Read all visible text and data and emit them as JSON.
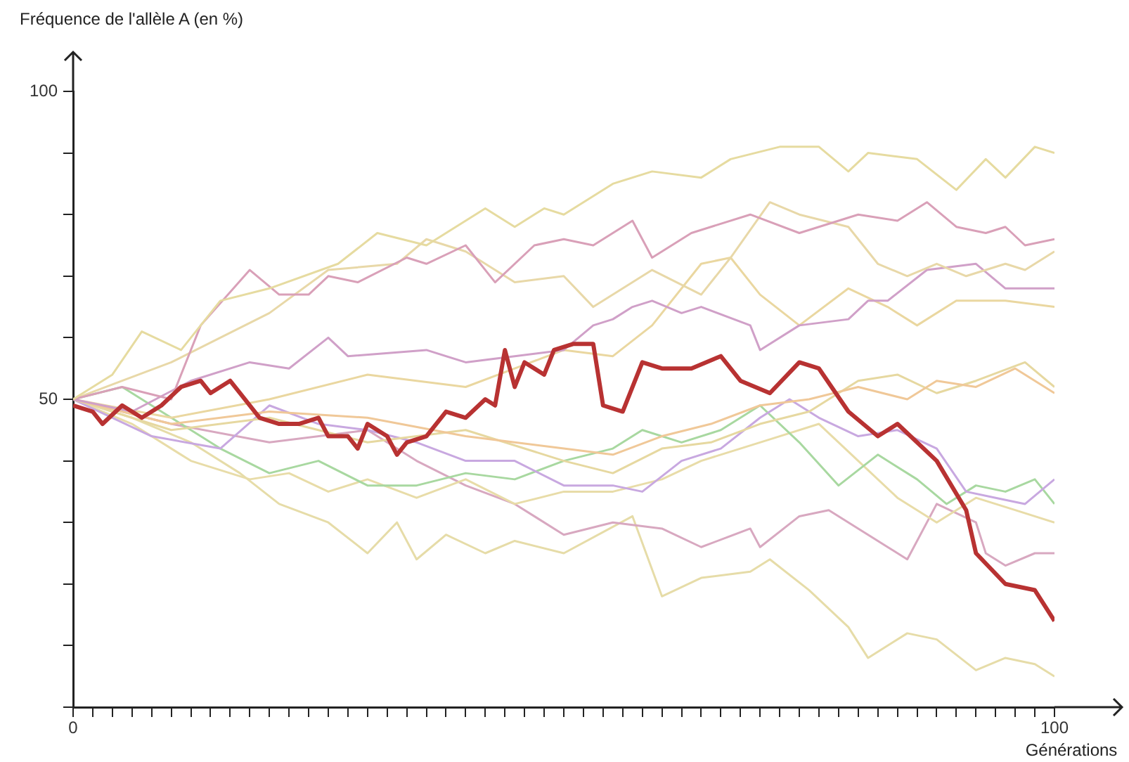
{
  "chart_data": {
    "type": "line",
    "ylabel": "Fréquence de l'allèle A (en %)",
    "xlabel": "Générations",
    "xlim": [
      0,
      100
    ],
    "ylim": [
      0,
      100
    ],
    "xticks": [
      0,
      {
        "value": 2,
        "label": null
      },
      {
        "value": 4,
        "label": null
      },
      {
        "value": 6,
        "label": null
      },
      {
        "value": 8,
        "label": null
      },
      {
        "value": 10,
        "label": null
      },
      {
        "value": 12,
        "label": null
      },
      {
        "value": 14,
        "label": null
      },
      {
        "value": 16,
        "label": null
      },
      {
        "value": 18,
        "label": null
      },
      {
        "value": 20,
        "label": null
      },
      {
        "value": 22,
        "label": null
      },
      {
        "value": 24,
        "label": null
      },
      {
        "value": 26,
        "label": null
      },
      {
        "value": 28,
        "label": null
      },
      {
        "value": 30,
        "label": null
      },
      {
        "value": 32,
        "label": null
      },
      {
        "value": 34,
        "label": null
      },
      {
        "value": 36,
        "label": null
      },
      {
        "value": 38,
        "label": null
      },
      {
        "value": 40,
        "label": null
      },
      {
        "value": 42,
        "label": null
      },
      {
        "value": 44,
        "label": null
      },
      {
        "value": 46,
        "label": null
      },
      {
        "value": 48,
        "label": null
      },
      {
        "value": 50,
        "label": null
      },
      {
        "value": 52,
        "label": null
      },
      {
        "value": 54,
        "label": null
      },
      {
        "value": 56,
        "label": null
      },
      {
        "value": 58,
        "label": null
      },
      {
        "value": 60,
        "label": null
      },
      {
        "value": 62,
        "label": null
      },
      {
        "value": 64,
        "label": null
      },
      {
        "value": 66,
        "label": null
      },
      {
        "value": 68,
        "label": null
      },
      {
        "value": 70,
        "label": null
      },
      {
        "value": 72,
        "label": null
      },
      {
        "value": 74,
        "label": null
      },
      {
        "value": 76,
        "label": null
      },
      {
        "value": 78,
        "label": null
      },
      {
        "value": 80,
        "label": null
      },
      {
        "value": 82,
        "label": null
      },
      {
        "value": 84,
        "label": null
      },
      {
        "value": 86,
        "label": null
      },
      {
        "value": 88,
        "label": null
      },
      {
        "value": 90,
        "label": null
      },
      {
        "value": 92,
        "label": null
      },
      {
        "value": 94,
        "label": null
      },
      {
        "value": 96,
        "label": null
      },
      {
        "value": 98,
        "label": null
      },
      100
    ],
    "yticks": [
      {
        "value": 0,
        "label": null
      },
      {
        "value": 10,
        "label": null
      },
      {
        "value": 20,
        "label": null
      },
      {
        "value": 30,
        "label": null
      },
      {
        "value": 40,
        "label": null
      },
      50,
      {
        "value": 60,
        "label": null
      },
      {
        "value": 70,
        "label": null
      },
      {
        "value": 80,
        "label": null
      },
      {
        "value": 90,
        "label": null
      },
      100
    ],
    "grid": false,
    "legend": false,
    "marker": "none",
    "series": [
      {
        "color": "#b83232",
        "x": [
          0,
          2,
          3,
          5,
          7,
          9,
          11,
          13,
          14,
          16,
          17,
          19,
          21,
          23,
          25,
          26,
          28,
          29,
          30,
          32,
          33,
          34,
          36,
          38,
          40,
          42,
          43,
          44,
          45,
          46,
          48,
          49,
          51,
          53,
          54,
          56,
          58,
          60,
          63,
          66,
          68,
          71,
          74,
          76,
          79,
          82,
          84,
          88,
          91,
          92,
          95,
          98,
          100
        ],
        "values": [
          49,
          48,
          46,
          49,
          47,
          49,
          52,
          53,
          51,
          53,
          51,
          47,
          46,
          46,
          47,
          44,
          44,
          42,
          46,
          44,
          41,
          43,
          44,
          48,
          47,
          50,
          49,
          58,
          52,
          56,
          54,
          58,
          59,
          59,
          49,
          48,
          56,
          55,
          55,
          57,
          53,
          51,
          56,
          55,
          48,
          44,
          46,
          40,
          32,
          25,
          20,
          19,
          14
        ]
      },
      {
        "color": "#e6dba0",
        "x": [
          0,
          4,
          7,
          11,
          15,
          20,
          27,
          31,
          36,
          42,
          45,
          48,
          50,
          55,
          59,
          64,
          67,
          72,
          76,
          79,
          81,
          86,
          90,
          93,
          95,
          98,
          100
        ],
        "values": [
          50,
          54,
          61,
          58,
          66,
          68,
          72,
          77,
          75,
          81,
          78,
          81,
          80,
          85,
          87,
          86,
          89,
          91,
          91,
          87,
          90,
          89,
          84,
          89,
          86,
          91,
          90
        ]
      },
      {
        "color": "#d9a0b8",
        "x": [
          0,
          5,
          10,
          13,
          18,
          21,
          24,
          26,
          29,
          34,
          36,
          40,
          43,
          47,
          50,
          53,
          57,
          59,
          63,
          69,
          74,
          80,
          84,
          87,
          90,
          93,
          95,
          97,
          100
        ],
        "values": [
          50,
          52,
          50,
          62,
          71,
          67,
          67,
          70,
          69,
          73,
          72,
          75,
          69,
          75,
          76,
          75,
          79,
          73,
          77,
          80,
          77,
          80,
          79,
          82,
          78,
          77,
          78,
          75,
          76
        ]
      },
      {
        "color": "#e8d8a8",
        "x": [
          0,
          5,
          10,
          15,
          20,
          26,
          33,
          36,
          40,
          45,
          50,
          53,
          59,
          64,
          67,
          71,
          74,
          79,
          82,
          85,
          88,
          91,
          95,
          97,
          100
        ],
        "values": [
          50,
          53,
          56,
          60,
          64,
          71,
          72,
          76,
          74,
          69,
          70,
          65,
          71,
          67,
          73,
          82,
          80,
          78,
          72,
          70,
          72,
          70,
          72,
          71,
          74
        ]
      },
      {
        "color": "#d0a0c8",
        "x": [
          0,
          6,
          12,
          18,
          22,
          26,
          28,
          36,
          40,
          45,
          50,
          53,
          55,
          57,
          59,
          62,
          64,
          69,
          70,
          74,
          79,
          81,
          83,
          87,
          92,
          95,
          100
        ],
        "values": [
          50,
          48,
          53,
          56,
          55,
          60,
          57,
          58,
          56,
          57,
          58,
          62,
          63,
          65,
          66,
          64,
          65,
          62,
          58,
          62,
          63,
          66,
          66,
          71,
          72,
          68,
          68
        ]
      },
      {
        "color": "#ead7a0",
        "x": [
          0,
          10,
          20,
          30,
          40,
          45,
          50,
          55,
          59,
          64,
          67,
          70,
          74,
          79,
          83,
          86,
          90,
          95,
          100
        ],
        "values": [
          50,
          47,
          50,
          54,
          52,
          55,
          58,
          57,
          62,
          72,
          73,
          67,
          62,
          68,
          65,
          62,
          66,
          66,
          65
        ]
      },
      {
        "color": "#f0c898",
        "x": [
          0,
          10,
          20,
          30,
          40,
          50,
          55,
          60,
          65,
          70,
          75,
          80,
          85,
          88,
          92,
          96,
          100
        ],
        "values": [
          50,
          46,
          48,
          47,
          44,
          42,
          41,
          44,
          46,
          49,
          50,
          52,
          50,
          53,
          52,
          55,
          51
        ]
      },
      {
        "color": "#e6d8a0",
        "x": [
          0,
          10,
          20,
          30,
          40,
          50,
          55,
          60,
          65,
          70,
          75,
          80,
          84,
          88,
          92,
          97,
          100
        ],
        "values": [
          50,
          45,
          47,
          43,
          45,
          40,
          38,
          42,
          43,
          46,
          48,
          53,
          54,
          51,
          53,
          56,
          52
        ]
      },
      {
        "color": "#c8a8e0",
        "x": [
          0,
          8,
          15,
          20,
          25,
          30,
          35,
          40,
          45,
          50,
          55,
          58,
          62,
          66,
          70,
          73,
          76,
          80,
          84,
          88,
          91,
          94,
          97,
          100
        ],
        "values": [
          50,
          44,
          42,
          49,
          46,
          45,
          43,
          40,
          40,
          36,
          36,
          35,
          40,
          42,
          47,
          50,
          47,
          44,
          45,
          42,
          35,
          34,
          33,
          37
        ]
      },
      {
        "color": "#a8d8a0",
        "x": [
          0,
          5,
          10,
          15,
          20,
          25,
          30,
          35,
          40,
          45,
          50,
          55,
          58,
          62,
          66,
          70,
          74,
          78,
          82,
          86,
          89,
          92,
          95,
          98,
          100
        ],
        "values": [
          50,
          52,
          47,
          42,
          38,
          40,
          36,
          36,
          38,
          37,
          40,
          42,
          45,
          43,
          45,
          49,
          43,
          36,
          41,
          37,
          33,
          36,
          35,
          37,
          33
        ]
      },
      {
        "color": "#e8dca8",
        "x": [
          0,
          6,
          12,
          18,
          22,
          26,
          30,
          35,
          40,
          45,
          50,
          55,
          60,
          64,
          68,
          72,
          76,
          80,
          84,
          88,
          92,
          96,
          100
        ],
        "values": [
          50,
          46,
          40,
          37,
          38,
          35,
          37,
          34,
          37,
          33,
          35,
          35,
          37,
          40,
          42,
          44,
          46,
          40,
          34,
          30,
          34,
          32,
          30
        ]
      },
      {
        "color": "#d8a8c0",
        "x": [
          0,
          10,
          20,
          30,
          35,
          40,
          45,
          50,
          55,
          60,
          64,
          69,
          70,
          74,
          77,
          80,
          83,
          85,
          88,
          92,
          93,
          95,
          98,
          100
        ],
        "values": [
          50,
          46,
          43,
          45,
          40,
          36,
          33,
          28,
          30,
          29,
          26,
          29,
          26,
          31,
          32,
          29,
          26,
          24,
          33,
          30,
          25,
          23,
          25,
          25
        ]
      },
      {
        "color": "#e6dca8",
        "x": [
          0,
          6,
          12,
          17,
          21,
          26,
          30,
          33,
          35,
          38,
          42,
          45,
          50,
          57,
          60,
          64,
          69,
          71,
          75,
          79,
          81,
          85,
          88,
          92,
          95,
          98,
          100
        ],
        "values": [
          50,
          47,
          43,
          38,
          33,
          30,
          25,
          30,
          24,
          28,
          25,
          27,
          25,
          31,
          18,
          21,
          22,
          24,
          19,
          13,
          8,
          12,
          11,
          6,
          8,
          7,
          5
        ]
      }
    ]
  }
}
